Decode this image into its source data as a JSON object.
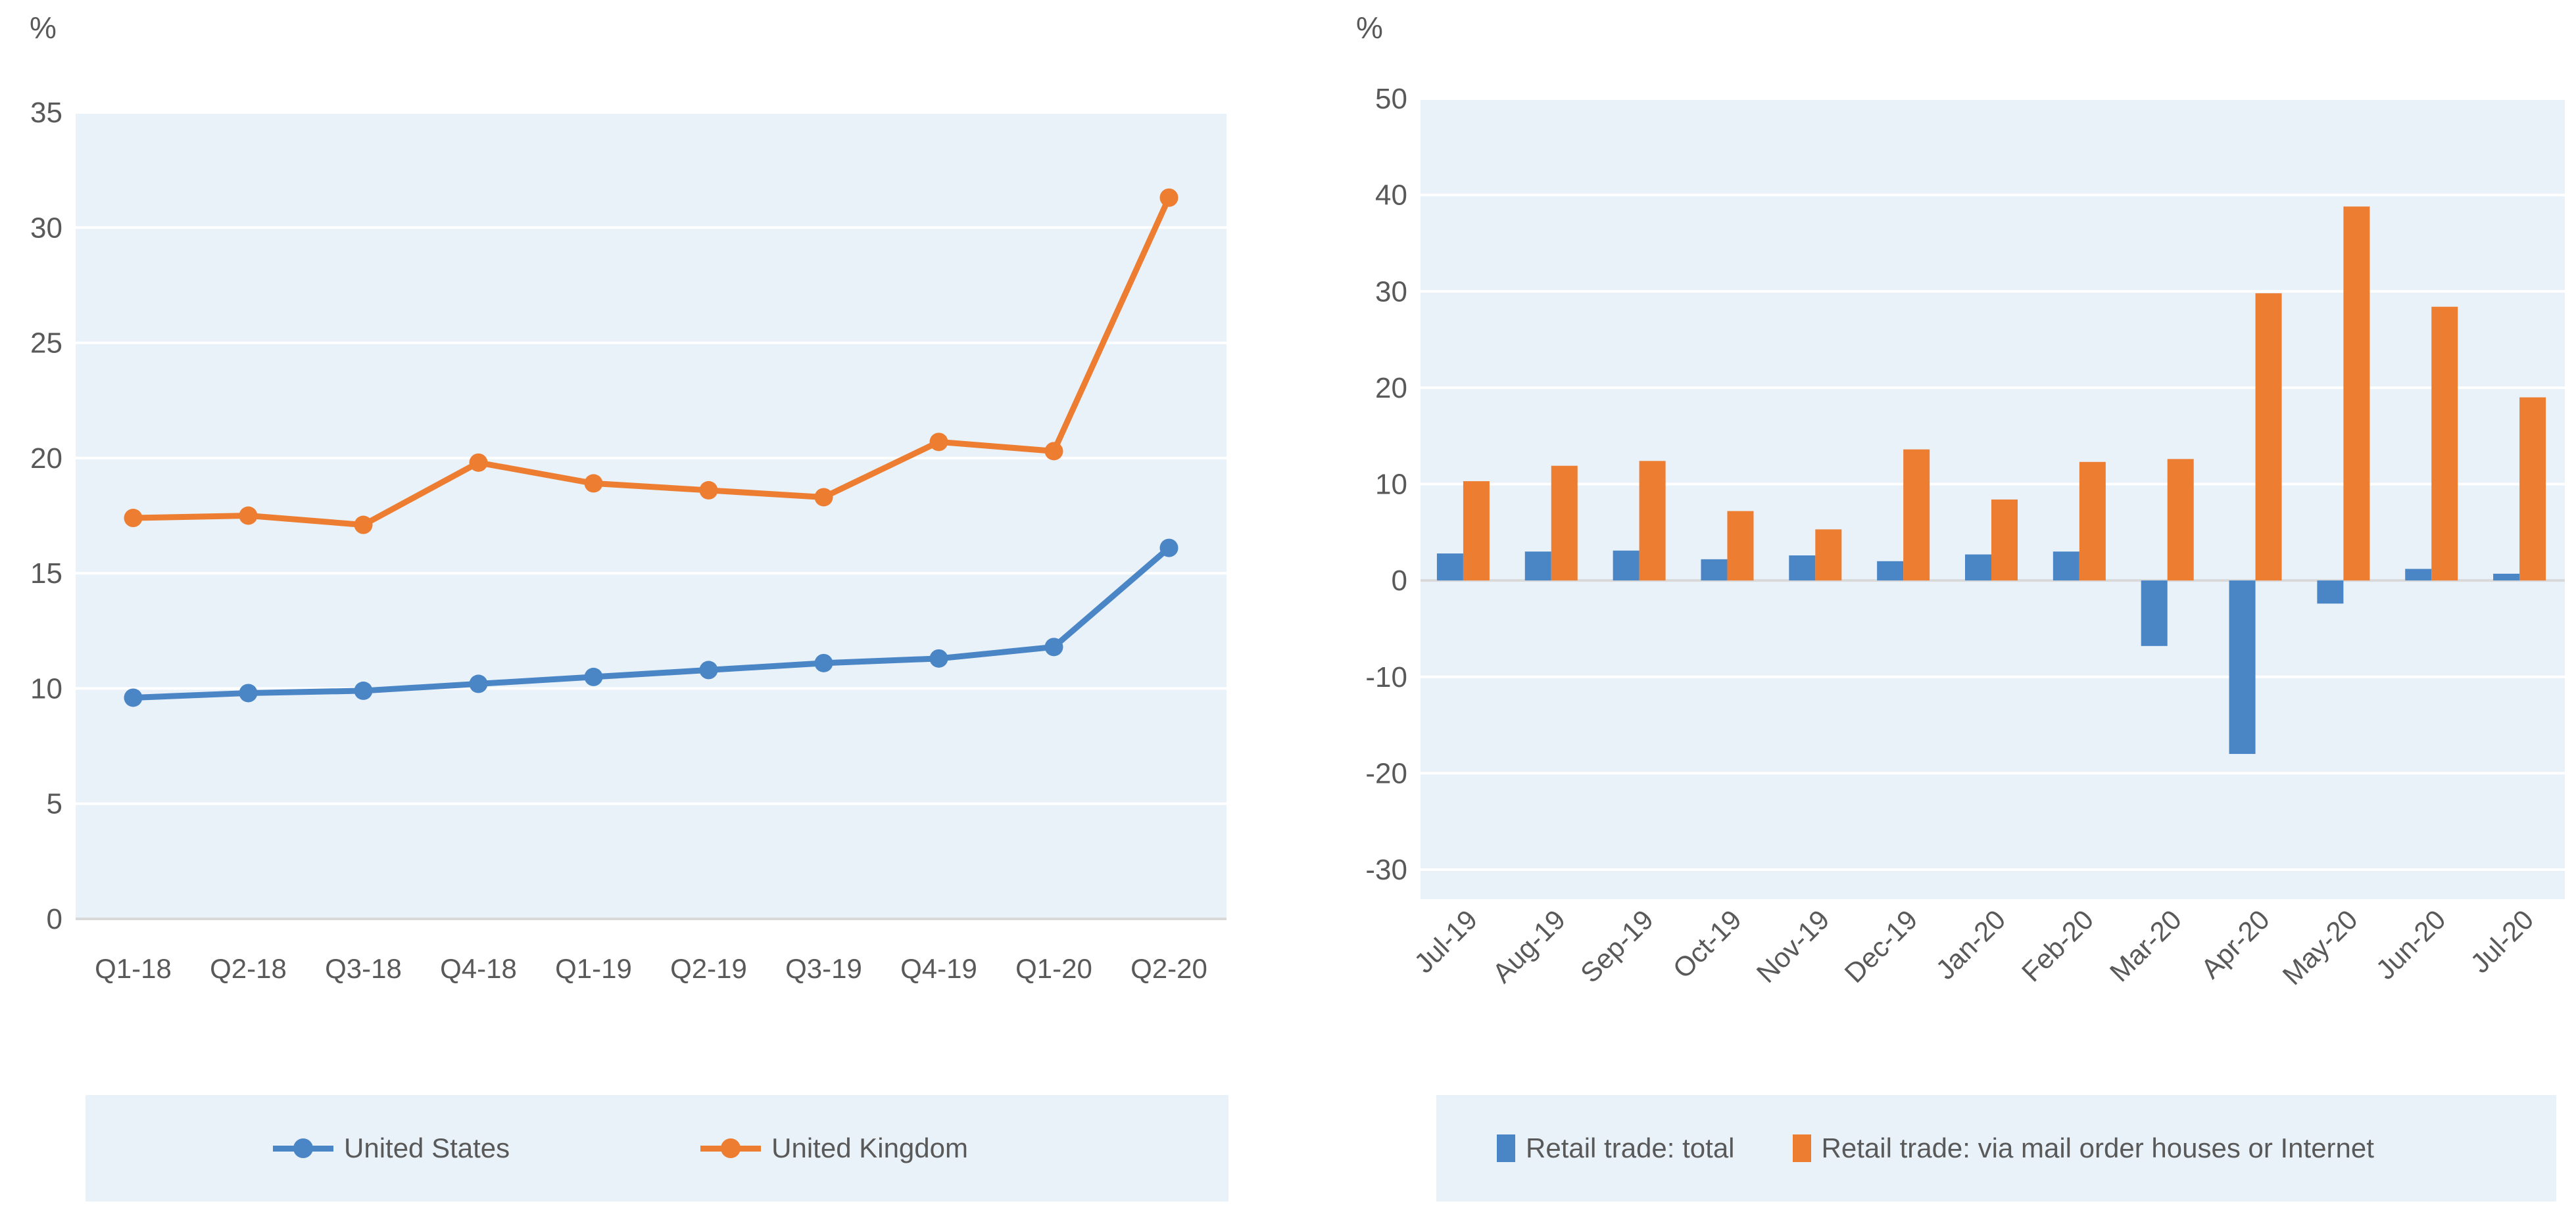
{
  "page": {
    "background": "#FFFFFF",
    "axis_text_color": "#595959"
  },
  "chart_data": [
    {
      "type": "line",
      "title": "",
      "unit_label": "%",
      "xlabel": "",
      "ylabel": "%",
      "categories": [
        "Q1-18",
        "Q2-18",
        "Q3-18",
        "Q4-18",
        "Q1-19",
        "Q2-19",
        "Q3-19",
        "Q4-19",
        "Q1-20",
        "Q2-20"
      ],
      "series": [
        {
          "name": "United States",
          "color": "#4A86C6",
          "values": [
            9.6,
            9.8,
            9.9,
            10.2,
            10.5,
            10.8,
            11.1,
            11.3,
            11.8,
            16.1
          ]
        },
        {
          "name": "United Kingdom",
          "color": "#ED7D31",
          "values": [
            17.4,
            17.5,
            17.1,
            19.8,
            18.9,
            18.6,
            18.3,
            20.7,
            20.3,
            31.3
          ]
        }
      ],
      "ylim": [
        0,
        35
      ],
      "yticks": [
        35,
        30,
        25,
        20,
        15,
        10,
        5,
        0
      ],
      "grid": true,
      "legend_position": "bottom",
      "plot_background": "#E9F1F9",
      "gridline_color": "#FFFFFF",
      "axis_line_color": "#D9D9D9",
      "x_label_rotation": 0
    },
    {
      "type": "bar",
      "title": "",
      "unit_label": "%",
      "xlabel": "",
      "ylabel": "%",
      "categories": [
        "Jul-19",
        "Aug-19",
        "Sep-19",
        "Oct-19",
        "Nov-19",
        "Dec-19",
        "Jan-20",
        "Feb-20",
        "Mar-20",
        "Apr-20",
        "May-20",
        "Jun-20",
        "Jul-20"
      ],
      "series": [
        {
          "name": "Retail trade: total",
          "color": "#4A86C6",
          "values": [
            2.8,
            3.0,
            3.1,
            2.2,
            2.6,
            2.0,
            2.7,
            3.0,
            -6.8,
            -18.0,
            -2.4,
            1.2,
            0.7
          ]
        },
        {
          "name": "Retail trade: via mail order houses or Internet",
          "color": "#ED7D31",
          "values": [
            10.3,
            11.9,
            12.4,
            7.2,
            5.3,
            13.6,
            8.4,
            12.3,
            12.6,
            29.8,
            38.8,
            28.4,
            19.0
          ]
        }
      ],
      "ylim": [
        -30,
        50
      ],
      "yticks": [
        50,
        40,
        30,
        20,
        10,
        0,
        -10,
        -20,
        -30
      ],
      "grid": true,
      "legend_position": "bottom",
      "plot_background": "#E9F1F9",
      "gridline_color": "#FFFFFF",
      "axis_line_color": "#D9D9D9",
      "x_label_rotation": -45
    }
  ]
}
